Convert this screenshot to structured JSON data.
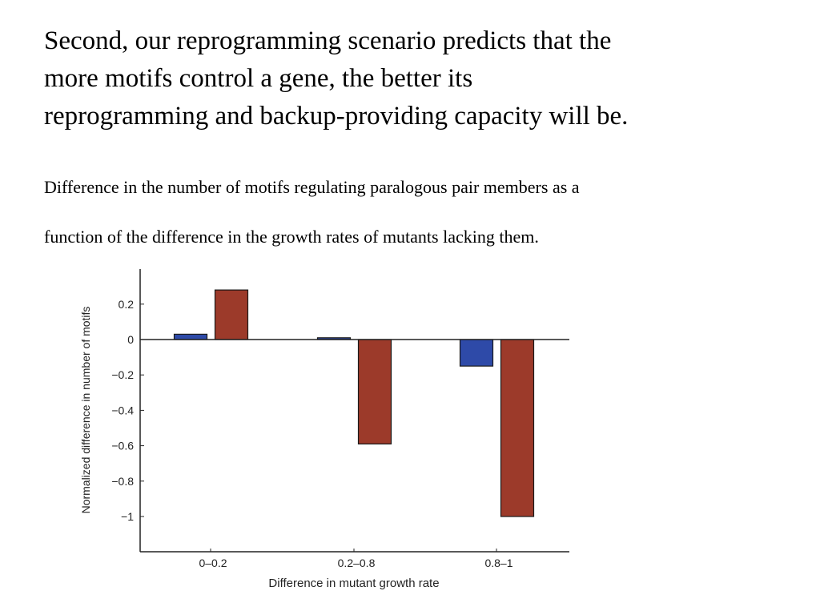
{
  "slide": {
    "headline_lines": [
      "Second, our reprogramming scenario predicts that the",
      "more motifs control a gene, the better its",
      "reprogramming and backup-providing capacity will be."
    ],
    "caption_lines": [
      "Difference in the number of motifs regulating paralogous pair members as a",
      "function of the difference in the growth rates of mutants lacking them."
    ]
  },
  "chart_data": {
    "type": "bar",
    "title": "",
    "xlabel": "Difference in mutant growth rate",
    "ylabel": "Normalized difference in number of motifs",
    "categories": [
      "0–0.2",
      "0.2–0.8",
      "0.8–1"
    ],
    "series": [
      {
        "color": "#2e4aa8",
        "values": [
          0.03,
          0.01,
          -0.15
        ]
      },
      {
        "color": "#9c3a2a",
        "values": [
          0.28,
          -0.59,
          -1.0
        ]
      }
    ],
    "yticks": [
      0.2,
      0,
      -0.2,
      -0.4,
      -0.6,
      -0.8,
      -1
    ],
    "ytick_labels": [
      "0.2",
      "0",
      "−0.2",
      "−0.4",
      "−0.6",
      "−0.8",
      "−1"
    ],
    "ylim": [
      -1.2,
      0.4
    ],
    "grid": false,
    "legend": "none"
  }
}
